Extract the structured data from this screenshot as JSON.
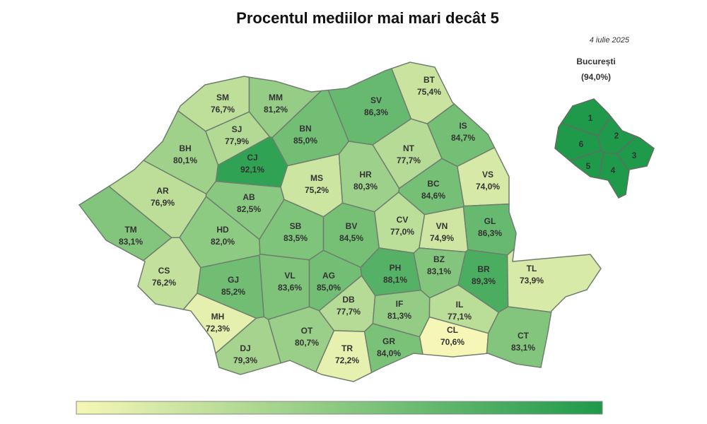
{
  "chart_data": {
    "type": "choropleth",
    "title": "Procentul mediilor mai mari decât 5",
    "subtitle": "4 iulie 2025",
    "regions": [
      "SM",
      "MM",
      "BT",
      "SV",
      "SJ",
      "BN",
      "IS",
      "BH",
      "CJ",
      "NT",
      "VS",
      "MS",
      "HR",
      "BC",
      "AR",
      "AB",
      "TM",
      "HD",
      "SB",
      "BV",
      "CV",
      "VN",
      "GL",
      "CS",
      "GJ",
      "VL",
      "AG",
      "PH",
      "BZ",
      "BR",
      "TL",
      "MH",
      "DJ",
      "OT",
      "DB",
      "IF",
      "IL",
      "CL",
      "TR",
      "GR",
      "CT"
    ],
    "values": [
      76.7,
      81.2,
      75.4,
      86.3,
      77.9,
      85.0,
      84.7,
      80.1,
      92.1,
      77.7,
      74.0,
      75.2,
      80.3,
      84.6,
      76.9,
      82.5,
      83.1,
      82.0,
      83.5,
      84.5,
      77.0,
      74.9,
      86.3,
      76.2,
      85.2,
      83.6,
      85.0,
      88.1,
      83.1,
      89.3,
      73.9,
      72.3,
      79.3,
      80.7,
      77.7,
      81.3,
      77.1,
      70.6,
      72.2,
      84.0,
      83.1
    ],
    "value_labels": [
      "76,7%",
      "81,2%",
      "75,4%",
      "86,3%",
      "77,9%",
      "85,0%",
      "84,7%",
      "80,1%",
      "92,1%",
      "77,7%",
      "74,0%",
      "75,2%",
      "80,3%",
      "84,6%",
      "76,9%",
      "82,5%",
      "83,1%",
      "82,0%",
      "83,5%",
      "84,5%",
      "77,0%",
      "74,9%",
      "86,3%",
      "76,2%",
      "85,2%",
      "83,6%",
      "85,0%",
      "88,1%",
      "83,1%",
      "89,3%",
      "73,9%",
      "72,3%",
      "79,3%",
      "80,7%",
      "77,7%",
      "81,3%",
      "77,1%",
      "70,6%",
      "72,2%",
      "84,0%",
      "83,1%"
    ],
    "bucharest": {
      "name": "București",
      "value": 94.0,
      "value_label": "(94,0%)",
      "sectors": [
        "1",
        "2",
        "3",
        "4",
        "5",
        "6"
      ]
    },
    "color_range": [
      "#f6f7b6",
      "#1f9a4b"
    ]
  }
}
